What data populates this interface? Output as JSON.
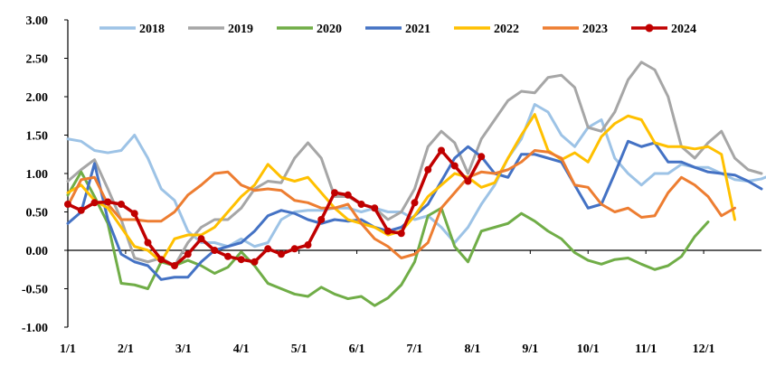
{
  "chart_data": {
    "type": "line",
    "title": "",
    "xlabel": "",
    "ylabel": "",
    "ylim": [
      -1.0,
      3.0
    ],
    "y_ticks": [
      "3.00",
      "2.50",
      "2.00",
      "1.50",
      "1.00",
      "0.50",
      "0.00",
      "-0.50",
      "-1.00"
    ],
    "x_ticks": [
      "1/1",
      "2/1",
      "3/1",
      "4/1",
      "5/1",
      "6/1",
      "7/1",
      "8/1",
      "9/1",
      "10/1",
      "11/1",
      "12/1"
    ],
    "x_range_weeks": [
      0,
      52
    ],
    "grid": false,
    "legend_position": "top",
    "series": [
      {
        "name": "2018",
        "color": "#9DC3E6",
        "marker": false,
        "values": [
          1.45,
          1.42,
          1.3,
          1.27,
          1.3,
          1.5,
          1.2,
          0.8,
          0.65,
          0.25,
          0.1,
          0.1,
          0.05,
          0.15,
          0.05,
          0.1,
          0.4,
          0.5,
          0.52,
          0.52,
          0.55,
          0.55,
          0.5,
          0.55,
          0.5,
          0.5,
          0.4,
          0.45,
          0.3,
          0.1,
          0.3,
          0.6,
          0.85,
          1.2,
          1.45,
          1.9,
          1.8,
          1.5,
          1.35,
          1.6,
          1.7,
          1.2,
          1.0,
          0.85,
          1.0,
          1.0,
          1.12,
          1.08,
          1.08,
          1.0,
          0.92,
          0.9,
          0.93,
          1.0
        ]
      },
      {
        "name": "2019",
        "color": "#A6A6A6",
        "marker": false,
        "values": [
          0.9,
          1.05,
          1.18,
          0.8,
          0.4,
          -0.1,
          -0.15,
          -0.1,
          -0.2,
          0.1,
          0.3,
          0.4,
          0.4,
          0.55,
          0.8,
          0.9,
          0.88,
          1.2,
          1.4,
          1.2,
          0.7,
          0.7,
          0.6,
          0.55,
          0.4,
          0.5,
          0.8,
          1.35,
          1.55,
          1.4,
          1.0,
          1.45,
          1.7,
          1.95,
          2.07,
          2.05,
          2.25,
          2.28,
          2.12,
          1.6,
          1.55,
          1.8,
          2.22,
          2.45,
          2.35,
          2.0,
          1.35,
          1.2,
          1.4,
          1.55,
          1.2,
          1.05,
          1.0
        ]
      },
      {
        "name": "2020",
        "color": "#70AD47",
        "marker": false,
        "values": [
          0.72,
          1.02,
          0.7,
          0.35,
          -0.43,
          -0.45,
          -0.5,
          -0.15,
          -0.2,
          -0.13,
          -0.2,
          -0.3,
          -0.22,
          -0.02,
          -0.2,
          -0.43,
          -0.5,
          -0.57,
          -0.6,
          -0.48,
          -0.57,
          -0.63,
          -0.6,
          -0.72,
          -0.62,
          -0.45,
          -0.15,
          0.45,
          0.55,
          0.05,
          -0.15,
          0.25,
          0.3,
          0.35,
          0.48,
          0.38,
          0.25,
          0.15,
          -0.03,
          -0.13,
          -0.18,
          -0.12,
          -0.1,
          -0.18,
          -0.25,
          -0.2,
          -0.08,
          0.18,
          0.37
        ]
      },
      {
        "name": "2021",
        "color": "#4472C4",
        "marker": false,
        "values": [
          0.35,
          0.5,
          1.13,
          0.4,
          -0.05,
          -0.15,
          -0.2,
          -0.38,
          -0.35,
          -0.35,
          -0.15,
          0.0,
          0.05,
          0.1,
          0.25,
          0.45,
          0.52,
          0.48,
          0.4,
          0.35,
          0.4,
          0.38,
          0.4,
          0.3,
          0.25,
          0.3,
          0.45,
          0.6,
          0.9,
          1.2,
          1.35,
          1.22,
          1.0,
          0.95,
          1.25,
          1.25,
          1.2,
          1.15,
          0.85,
          0.55,
          0.6,
          1.0,
          1.42,
          1.35,
          1.4,
          1.15,
          1.15,
          1.08,
          1.02,
          1.0,
          0.98,
          0.9,
          0.8
        ]
      },
      {
        "name": "2022",
        "color": "#FFC000",
        "marker": false,
        "values": [
          0.75,
          0.85,
          0.65,
          0.55,
          0.3,
          0.05,
          0.0,
          -0.15,
          0.15,
          0.2,
          0.2,
          0.3,
          0.5,
          0.7,
          0.85,
          1.12,
          0.95,
          0.9,
          0.95,
          0.75,
          0.55,
          0.4,
          0.35,
          0.3,
          0.2,
          0.25,
          0.45,
          0.7,
          0.85,
          1.0,
          0.95,
          0.82,
          0.88,
          1.2,
          1.5,
          1.77,
          1.3,
          1.18,
          1.27,
          1.15,
          1.48,
          1.65,
          1.75,
          1.7,
          1.4,
          1.35,
          1.35,
          1.32,
          1.35,
          1.25,
          0.4
        ]
      },
      {
        "name": "2023",
        "color": "#ED7D31",
        "marker": false,
        "values": [
          0.58,
          0.92,
          0.95,
          0.6,
          0.4,
          0.4,
          0.38,
          0.38,
          0.5,
          0.72,
          0.85,
          1.0,
          1.02,
          0.85,
          0.78,
          0.8,
          0.78,
          0.65,
          0.62,
          0.55,
          0.55,
          0.6,
          0.35,
          0.15,
          0.05,
          -0.1,
          -0.05,
          0.1,
          0.55,
          0.75,
          0.95,
          1.02,
          1.0,
          1.05,
          1.15,
          1.3,
          1.28,
          1.2,
          0.85,
          0.82,
          0.6,
          0.5,
          0.55,
          0.43,
          0.45,
          0.75,
          0.95,
          0.85,
          0.7,
          0.45,
          0.55
        ]
      },
      {
        "name": "2024",
        "color": "#C00000",
        "marker": true,
        "values": [
          0.6,
          0.52,
          0.62,
          0.63,
          0.6,
          0.48,
          0.1,
          -0.12,
          -0.2,
          -0.05,
          0.15,
          0.0,
          -0.08,
          -0.12,
          -0.15,
          0.02,
          -0.05,
          0.02,
          0.07,
          0.4,
          0.75,
          0.72,
          0.6,
          0.55,
          0.25,
          0.22,
          0.62,
          1.05,
          1.3,
          1.1,
          0.9,
          1.22
        ]
      }
    ]
  }
}
